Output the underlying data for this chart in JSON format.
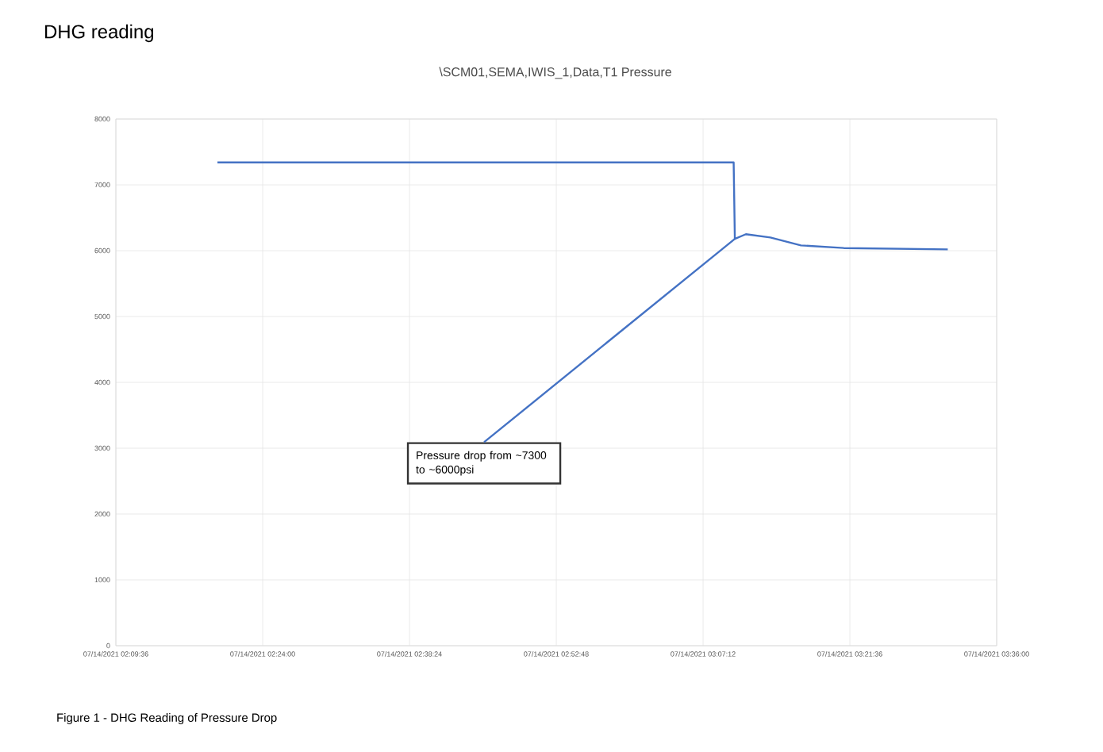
{
  "chart_data": {
    "type": "line",
    "title": "DHG reading",
    "subtitle": "\\SCM01,SEMA,IWIS_1,Data,T1 Pressure",
    "x": [
      "2021-07-14T02:19:34",
      "2021-07-14T03:10:12",
      "2021-07-14T03:10:19",
      "2021-07-14T03:11:24",
      "2021-07-14T03:13:48",
      "2021-07-14T03:16:48",
      "2021-07-14T03:21:00",
      "2021-07-14T03:31:12"
    ],
    "series": [
      {
        "color": "#4472c4",
        "values": [
          7340,
          7340,
          6180,
          6250,
          6200,
          6080,
          6040,
          6020
        ]
      }
    ],
    "xlim": [
      "2021-07-14T02:09:36",
      "2021-07-14T03:36:00"
    ],
    "xticks": [
      {
        "value": "2021-07-14T02:09:36",
        "label": "07/14/2021 02:09:36"
      },
      {
        "value": "2021-07-14T02:24:00",
        "label": "07/14/2021 02:24:00"
      },
      {
        "value": "2021-07-14T02:38:24",
        "label": "07/14/2021 02:38:24"
      },
      {
        "value": "2021-07-14T02:52:48",
        "label": "07/14/2021 02:52:48"
      },
      {
        "value": "2021-07-14T03:07:12",
        "label": "07/14/2021 03:07:12"
      },
      {
        "value": "2021-07-14T03:21:36",
        "label": "07/14/2021 03:21:36"
      },
      {
        "value": "2021-07-14T03:36:00",
        "label": "07/14/2021 03:36:00"
      }
    ],
    "ylim": [
      0,
      8000
    ],
    "yticks": [
      0,
      1000,
      2000,
      3000,
      4000,
      5000,
      6000,
      7000,
      8000
    ],
    "grid": true,
    "marker": "none",
    "line_style": "solid",
    "annotations": [
      {
        "text": "Pressure drop from ~7300 to ~6000psi",
        "x": "2021-07-14T03:10:19",
        "y": 6180
      },
      "Figure 1 - DHG Reading of Pressure Drop"
    ]
  }
}
